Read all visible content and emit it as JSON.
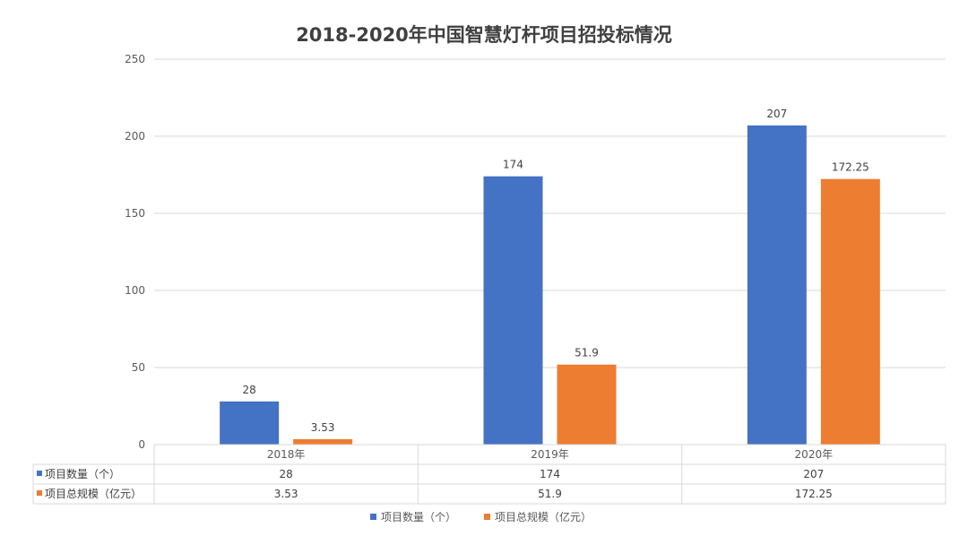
{
  "chart_data": {
    "type": "bar",
    "title": "2018-2020年中国智慧灯杆项目招投标情况",
    "categories": [
      "2018年",
      "2019年",
      "2020年"
    ],
    "series": [
      {
        "name": "项目数量（个）",
        "values": [
          28,
          174,
          207
        ],
        "labels": [
          "28",
          "174",
          "207"
        ],
        "color": "#4472C4"
      },
      {
        "name": "项目总规模（亿元）",
        "values": [
          3.53,
          51.9,
          172.25
        ],
        "labels": [
          "3.53",
          "51.9",
          "172.25"
        ],
        "color": "#ED7D31"
      }
    ],
    "ylim": [
      0,
      250
    ],
    "yticks": [
      "0",
      "50",
      "100",
      "150",
      "200",
      "250"
    ],
    "grid": true,
    "data_table": true,
    "legend_position": "bottom"
  }
}
